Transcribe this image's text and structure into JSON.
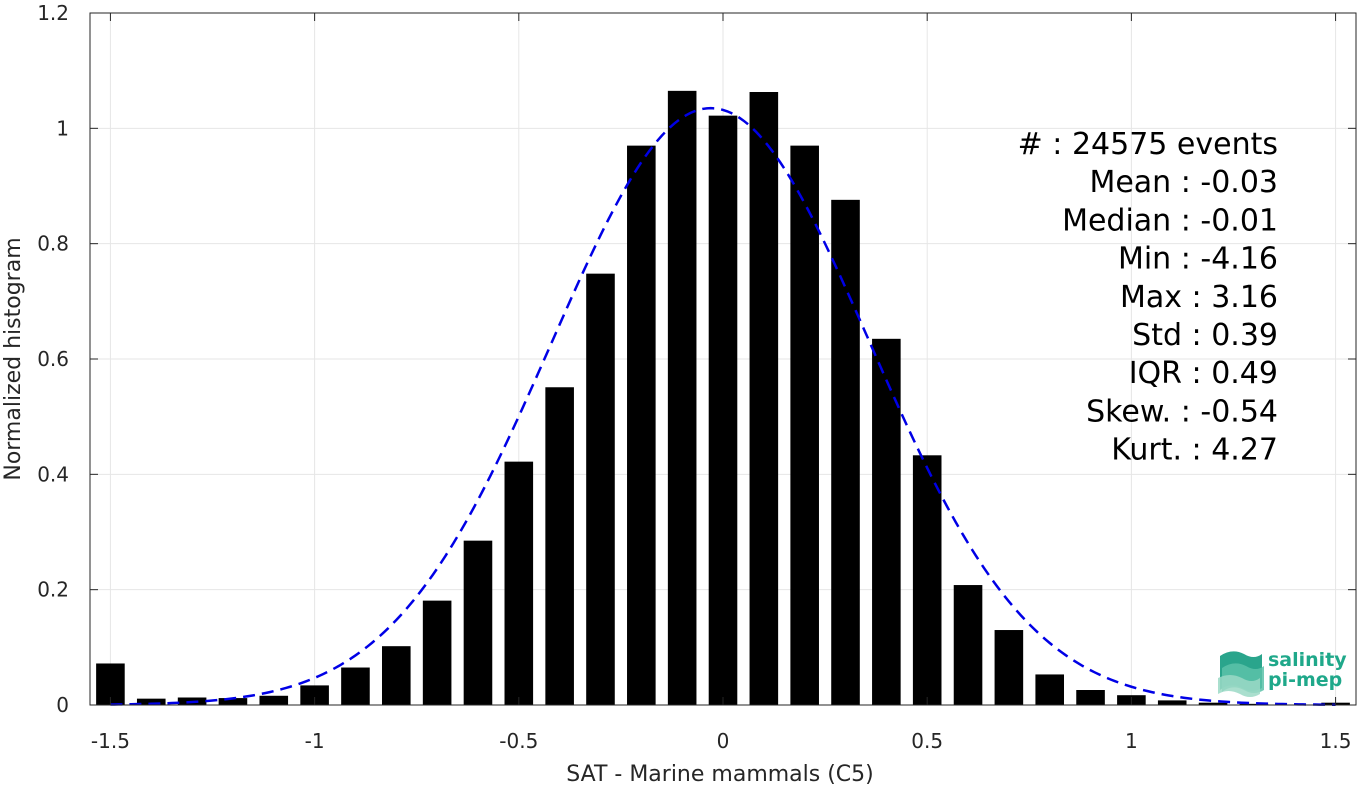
{
  "chart_data": {
    "type": "bar",
    "xlabel": "SAT - Marine mammals (C5)",
    "ylabel": "Normalized histogram",
    "xlim": [
      -1.55,
      1.55
    ],
    "ylim": [
      0,
      1.2
    ],
    "xticks": [
      -1.5,
      -1,
      -0.5,
      0,
      0.5,
      1,
      1.5
    ],
    "xtick_labels": [
      "-1.5",
      "-1",
      "-0.5",
      "0",
      "0.5",
      "1",
      "1.5"
    ],
    "yticks": [
      0,
      0.2,
      0.4,
      0.6,
      0.8,
      1,
      1.2
    ],
    "ytick_labels": [
      "0",
      "0.2",
      "0.4",
      "0.6",
      "0.8",
      "1",
      "1.2"
    ],
    "grid": true,
    "bar_color": "#000000",
    "bins": [
      -1.5,
      -1.4,
      -1.3,
      -1.2,
      -1.1,
      -1.0,
      -0.9,
      -0.8,
      -0.7,
      -0.6,
      -0.5,
      -0.4,
      -0.3,
      -0.2,
      -0.1,
      0.0,
      0.1,
      0.2,
      0.3,
      0.4,
      0.5,
      0.6,
      0.7,
      0.8,
      0.9,
      1.0,
      1.1,
      1.2,
      1.3,
      1.5
    ],
    "values": [
      0.072,
      0.011,
      0.013,
      0.012,
      0.016,
      0.034,
      0.065,
      0.102,
      0.181,
      0.285,
      0.422,
      0.551,
      0.748,
      0.97,
      1.065,
      1.022,
      1.063,
      0.97,
      0.876,
      0.635,
      0.433,
      0.208,
      0.13,
      0.053,
      0.026,
      0.017,
      0.008,
      0.004,
      0.002,
      0.004
    ],
    "fit_curve": {
      "type": "gaussian",
      "mean": -0.03,
      "std": 0.39,
      "peak": 1.035,
      "color": "#0000e6",
      "style": "dashed"
    },
    "stats": [
      {
        "label": "#  : 24575 events"
      },
      {
        "label": "Mean : -0.03"
      },
      {
        "label": "Median : -0.01"
      },
      {
        "label": "Min : -4.16"
      },
      {
        "label": "Max : 3.16"
      },
      {
        "label": "Std : 0.39"
      },
      {
        "label": "IQR : 0.49"
      },
      {
        "label": "Skew. : -0.54"
      },
      {
        "label": "Kurt. : 4.27"
      }
    ]
  },
  "logo": {
    "line1": "salinity",
    "line2": "pi-mep",
    "color": "#1fa88a"
  }
}
